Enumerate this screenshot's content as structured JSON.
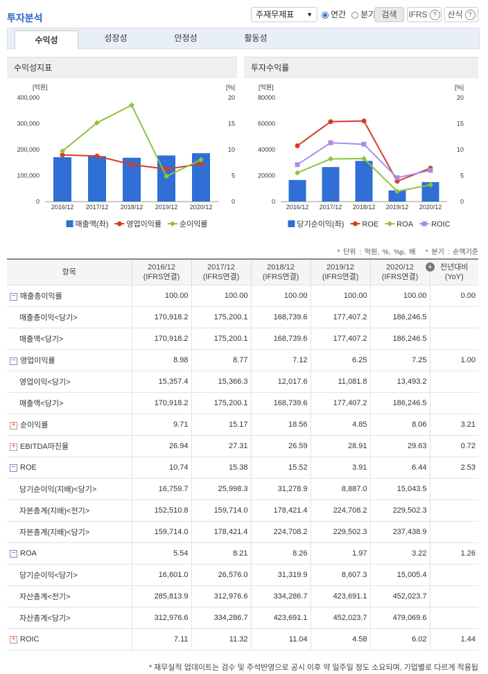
{
  "header": {
    "title": "투자분석",
    "select": "주재무제표",
    "radios": [
      "연간",
      "분기"
    ],
    "checked": 0,
    "buttons": [
      "검색",
      "IFRS",
      "산식"
    ]
  },
  "tabs": {
    "items": [
      "수익성",
      "성장성",
      "안정성",
      "활동성"
    ],
    "active": 0
  },
  "panels": [
    "수익성지표",
    "투자수익률"
  ],
  "chart_data": [
    {
      "type": "combo",
      "categories": [
        "2016/12",
        "2017/12",
        "2018/12",
        "2019/12",
        "2020/12"
      ],
      "ylabel": "[억원]",
      "y2label": "[%]",
      "ylim": [
        0,
        400000
      ],
      "yticks": [
        0,
        {
          "value": 100000,
          "label": "100,000"
        },
        {
          "value": 200000,
          "label": "200,000"
        },
        {
          "value": 300000,
          "label": "300,000"
        },
        {
          "value": 400000,
          "label": "400,000"
        }
      ],
      "y2lim": [
        0,
        20
      ],
      "y2ticks": [
        0,
        5,
        10,
        15,
        20
      ],
      "series": [
        {
          "name": "매출액(좌)",
          "type": "bar",
          "color": "#2f6fd6",
          "values": [
            170918.2,
            175200.1,
            168739.6,
            177407.2,
            186246.5
          ]
        },
        {
          "name": "영업이익률",
          "type": "line",
          "marker": "circle",
          "axis": "y2",
          "color": "#d63c22",
          "values": [
            8.98,
            8.77,
            7.12,
            6.25,
            7.25
          ]
        },
        {
          "name": "순이익률",
          "type": "line",
          "marker": "diamond",
          "axis": "y2",
          "color": "#8cc43c",
          "values": [
            9.71,
            15.17,
            18.56,
            4.85,
            8.06
          ]
        }
      ]
    },
    {
      "type": "combo",
      "categories": [
        "2016/12",
        "2017/12",
        "2018/12",
        "2019/12",
        "2020/12"
      ],
      "ylabel": "[억원]",
      "y2label": "[%]",
      "ylim": [
        0,
        80000
      ],
      "yticks": [
        0,
        20000,
        40000,
        60000,
        80000
      ],
      "y2lim": [
        0,
        20
      ],
      "y2ticks": [
        0,
        5,
        10,
        15,
        20
      ],
      "series": [
        {
          "name": "당기순이익(좌)",
          "type": "bar",
          "color": "#2f6fd6",
          "values": [
            16601.0,
            26576.0,
            31319.9,
            8607.3,
            15005.4
          ]
        },
        {
          "name": "ROE",
          "type": "line",
          "marker": "circle",
          "axis": "y2",
          "color": "#d63c22",
          "values": [
            10.74,
            15.38,
            15.52,
            3.91,
            6.44
          ]
        },
        {
          "name": "ROA",
          "type": "line",
          "marker": "diamond",
          "axis": "y2",
          "color": "#8cc43c",
          "values": [
            5.54,
            8.21,
            8.26,
            1.97,
            3.22
          ]
        },
        {
          "name": "ROIC",
          "type": "line",
          "marker": "square",
          "axis": "y2",
          "color": "#a68ee8",
          "values": [
            7.11,
            11.32,
            11.04,
            4.58,
            6.02
          ]
        }
      ]
    }
  ],
  "notes": [
    "* 단위 : 억원, %, %p, 배",
    "* 분기 : 순액기준"
  ],
  "table": {
    "head": [
      {
        "title": "항목"
      },
      {
        "title": "2016/12",
        "sub": "(IFRS연결)"
      },
      {
        "title": "2017/12",
        "sub": "(IFRS연결)"
      },
      {
        "title": "2018/12",
        "sub": "(IFRS연결)"
      },
      {
        "title": "2019/12",
        "sub": "(IFRS연결)"
      },
      {
        "title": "2020/12",
        "sub": "(IFRS연결)"
      },
      {
        "title": "전년대비",
        "sub": "(YoY)"
      }
    ],
    "rows": [
      {
        "label": "매출총이익률",
        "toggle": "minus",
        "values": [
          "100.00",
          "100.00",
          "100.00",
          "100.00",
          "100.00"
        ],
        "yoy": "0.00"
      },
      {
        "label": "매출총이익<당기>",
        "values": [
          "170,918.2",
          "175,200.1",
          "168,739.6",
          "177,407.2",
          "186,246.5"
        ]
      },
      {
        "label": "매출액<당기>",
        "values": [
          "170,918.2",
          "175,200.1",
          "168,739.6",
          "177,407.2",
          "186,246.5"
        ]
      },
      {
        "label": "영업이익률",
        "toggle": "minus",
        "values": [
          "8.98",
          "8.77",
          "7.12",
          "6.25",
          "7.25"
        ],
        "yoy": "1.00"
      },
      {
        "label": "영업이익<당기>",
        "values": [
          "15,357.4",
          "15,366.3",
          "12,017.6",
          "11,081.8",
          "13,493.2"
        ]
      },
      {
        "label": "매출액<당기>",
        "values": [
          "170,918.2",
          "175,200.1",
          "168,739.6",
          "177,407.2",
          "186,246.5"
        ]
      },
      {
        "label": "순이익률",
        "toggle": "plus",
        "values": [
          "9.71",
          "15.17",
          "18.56",
          "4.85",
          "8.06"
        ],
        "yoy": "3.21"
      },
      {
        "label": "EBITDA마진율",
        "toggle": "plus",
        "values": [
          "26.94",
          "27.31",
          "26.59",
          "28.91",
          "29.63"
        ],
        "yoy": "0.72"
      },
      {
        "label": "ROE",
        "toggle": "minus",
        "values": [
          "10.74",
          "15.38",
          "15.52",
          "3.91",
          "6.44"
        ],
        "yoy": "2.53"
      },
      {
        "label": "당기순이익(지배)<당기>",
        "values": [
          "16,759.7",
          "25,998.3",
          "31,278.9",
          "8,887.0",
          "15,043.5"
        ]
      },
      {
        "label": "자본총계(지배)<전기>",
        "values": [
          "152,510.8",
          "159,714.0",
          "178,421.4",
          "224,708.2",
          "229,502.3"
        ]
      },
      {
        "label": "자본총계(지배)<당기>",
        "values": [
          "159,714.0",
          "178,421.4",
          "224,708.2",
          "229,502.3",
          "237,438.9"
        ]
      },
      {
        "label": "ROA",
        "toggle": "minus",
        "values": [
          "5.54",
          "8.21",
          "8.26",
          "1.97",
          "3.22"
        ],
        "yoy": "1.26"
      },
      {
        "label": "당기순이익<당기>",
        "values": [
          "16,601.0",
          "26,576.0",
          "31,319.9",
          "8,607.3",
          "15,005.4"
        ]
      },
      {
        "label": "자산총계<전기>",
        "values": [
          "285,813.9",
          "312,976.6",
          "334,286.7",
          "423,691.1",
          "452,023.7"
        ]
      },
      {
        "label": "자산총계<당기>",
        "values": [
          "312,976.6",
          "334,286.7",
          "423,691.1",
          "452,023.7",
          "479,069.6"
        ]
      },
      {
        "label": "ROIC",
        "toggle": "plus",
        "values": [
          "7.11",
          "11.32",
          "11.04",
          "4.58",
          "6.02"
        ],
        "yoy": "1.44"
      }
    ]
  },
  "footer": "* 재무실적 업데이트는 검수 및 주석반영으로 공시 이후 약 일주일 정도 소요되며, 기업별로 다르게 적용됩"
}
